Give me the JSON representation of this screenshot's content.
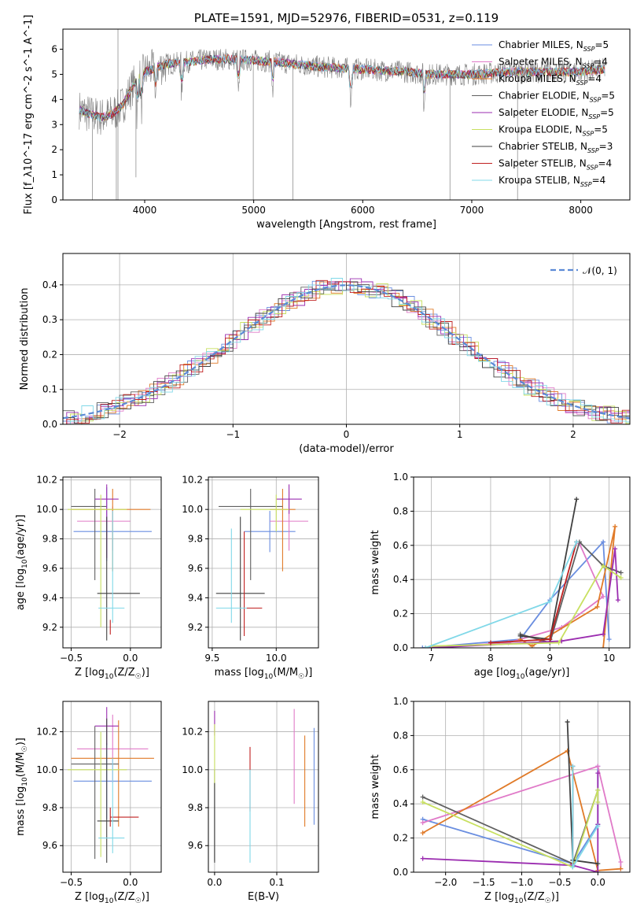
{
  "colors": [
    "#6a8ee0",
    "#e07ac8",
    "#e07a28",
    "#606060",
    "#9b2db0",
    "#c8e060",
    "#404040",
    "#c02020",
    "#80d8e8"
  ],
  "chart_data": [
    {
      "id": "spectrum",
      "type": "line",
      "title": "PLATE=1591, MJD=52976, FIBERID=0531, z=0.119",
      "xlabel": "wavelength [Angstrom, rest frame]",
      "ylabel": "Flux [f_λ10^-17 erg cm^-2 s^-1 A^-1]",
      "xlim": [
        3250,
        8450
      ],
      "ylim": [
        0,
        6.8
      ],
      "xticks": [
        4000,
        5000,
        6000,
        7000,
        8000
      ],
      "yticks": [
        0,
        1,
        2,
        3,
        4,
        5,
        6
      ],
      "grid": false,
      "legend_position": "top-right",
      "series": [
        {
          "name": "Chabrier MILES, N_SSP=5",
          "base": "Chabrier MILES, N",
          "sub": "SSP",
          "tail": "=5"
        },
        {
          "name": "Salpeter MILES, N_SSP=4",
          "base": "Salpeter MILES, N",
          "sub": "SSP",
          "tail": "=4"
        },
        {
          "name": "Kroupa MILES, N_SSP=4",
          "base": "Kroupa MILES, N",
          "sub": "SSP",
          "tail": "=4"
        },
        {
          "name": "Chabrier ELODIE, N_SSP=5",
          "base": "Chabrier ELODIE, N",
          "sub": "SSP",
          "tail": "=5"
        },
        {
          "name": "Salpeter ELODIE, N_SSP=5",
          "base": "Salpeter ELODIE, N",
          "sub": "SSP",
          "tail": "=5"
        },
        {
          "name": "Kroupa ELODIE, N_SSP=5",
          "base": "Kroupa ELODIE, N",
          "sub": "SSP",
          "tail": "=5"
        },
        {
          "name": "Chabrier STELIB, N_SSP=3",
          "base": "Chabrier STELIB, N",
          "sub": "SSP",
          "tail": "=3"
        },
        {
          "name": "Salpeter STELIB, N_SSP=4",
          "base": "Salpeter STELIB, N",
          "sub": "SSP",
          "tail": "=4"
        },
        {
          "name": "Kroupa STELIB, N_SSP=4",
          "base": "Kroupa STELIB, N",
          "sub": "SSP",
          "tail": "=4"
        }
      ],
      "continuum": {
        "x": [
          3400,
          3500,
          3600,
          3700,
          3800,
          3900,
          4000,
          4200,
          4400,
          4600,
          4800,
          5000,
          5200,
          5400,
          5600,
          5800,
          6000,
          6200,
          6400,
          6600,
          6800,
          7000,
          7200,
          7400,
          7600,
          7800,
          8000,
          8200
        ],
        "y": [
          3.6,
          3.4,
          3.3,
          3.4,
          3.8,
          4.6,
          5.1,
          5.4,
          5.5,
          5.6,
          5.6,
          5.55,
          5.5,
          5.4,
          5.3,
          5.25,
          5.2,
          5.15,
          5.1,
          5.0,
          5.0,
          5.0,
          5.05,
          5.1,
          5.1,
          5.1,
          5.1,
          5.2
        ]
      }
    },
    {
      "id": "residuals",
      "type": "line",
      "xlabel": "(data-model)/error",
      "ylabel": "Normed distribution",
      "xlim": [
        -2.5,
        2.5
      ],
      "ylim": [
        0,
        0.49
      ],
      "xticks": [
        -2,
        -1,
        0,
        1,
        2
      ],
      "yticks": [
        0.0,
        0.1,
        0.2,
        0.3,
        0.4
      ],
      "grid": true,
      "legend_position": "top-right",
      "legend_label": "𝒩(0, 1)",
      "gaussian": {
        "mu": 0,
        "sigma": 1
      }
    },
    {
      "id": "age-vs-z",
      "type": "scatter",
      "xlabel": "Z [log10(Z/Z☉)]",
      "xlabel_parts": [
        "Z [log",
        "10",
        "(Z/Z",
        "☉",
        ")]"
      ],
      "ylabel": "age [log10(age/yr)]",
      "ylabel_parts": [
        "age  [log",
        "10",
        "(age/yr)]"
      ],
      "xlim": [
        -0.57,
        0.26
      ],
      "ylim": [
        9.06,
        10.22
      ],
      "xticks": [
        -0.5,
        0.0
      ],
      "yticks": [
        9.2,
        9.4,
        9.6,
        9.8,
        10.0,
        10.2
      ],
      "grid": true,
      "errorbars": [
        {
          "series": 0,
          "x": -0.2,
          "y": 9.85,
          "xerr": [
            0.28,
            0.38
          ],
          "yerr": [
            0.2,
            0.3
          ]
        },
        {
          "series": 1,
          "x": -0.15,
          "y": 9.92,
          "xerr": [
            0.3,
            0.15
          ],
          "yerr": [
            0.2,
            0.1
          ]
        },
        {
          "series": 2,
          "x": -0.15,
          "y": 10.0,
          "xerr": [
            0.35,
            0.32
          ],
          "yerr": [
            0.42,
            0.14
          ]
        },
        {
          "series": 3,
          "x": -0.3,
          "y": 10.02,
          "xerr": [
            0.2,
            0.1
          ],
          "yerr": [
            0.5,
            0.12
          ]
        },
        {
          "series": 4,
          "x": -0.2,
          "y": 10.07,
          "xerr": [
            0.1,
            0.1
          ],
          "yerr": [
            0.4,
            0.1
          ]
        },
        {
          "series": 5,
          "x": -0.25,
          "y": 10.0,
          "xerr": [
            0.28,
            0.22
          ],
          "yerr": [
            0.8,
            0.1
          ]
        },
        {
          "series": 6,
          "x": -0.2,
          "y": 9.43,
          "xerr": [
            0.08,
            0.28
          ],
          "yerr": [
            0.32,
            0.52
          ]
        },
        {
          "series": 7,
          "x": -0.17,
          "y": 9.2,
          "xerr": [
            0.0,
            0.0
          ],
          "yerr": [
            0.05,
            0.05
          ]
        },
        {
          "series": 8,
          "x": -0.15,
          "y": 9.33,
          "xerr": [
            0.12,
            0.1
          ],
          "yerr": [
            0.1,
            0.66
          ]
        }
      ]
    },
    {
      "id": "age-vs-mass",
      "type": "scatter",
      "xlabel": "mass [log10(M/M☉)]",
      "xlabel_parts": [
        "mass [log",
        "10",
        "(M/M",
        "☉",
        ")]"
      ],
      "ylabel": "",
      "xlim": [
        9.47,
        10.33
      ],
      "ylim": [
        9.06,
        10.22
      ],
      "xticks": [
        9.5,
        10.0
      ],
      "yticks": [
        9.2,
        9.4,
        9.6,
        9.8,
        10.0,
        10.2
      ],
      "grid": true,
      "errorbars": [
        {
          "series": 0,
          "x": 9.95,
          "y": 9.85,
          "xerr": [
            0.2,
            0.2
          ],
          "yerr": [
            0.14,
            0.14
          ]
        },
        {
          "series": 1,
          "x": 10.1,
          "y": 9.92,
          "xerr": [
            0.15,
            0.15
          ],
          "yerr": [
            0.2,
            0.2
          ]
        },
        {
          "series": 2,
          "x": 10.05,
          "y": 10.0,
          "xerr": [
            0.1,
            0.1
          ],
          "yerr": [
            0.42,
            0.14
          ]
        },
        {
          "series": 3,
          "x": 9.8,
          "y": 10.02,
          "xerr": [
            0.25,
            0.25
          ],
          "yerr": [
            0.5,
            0.12
          ]
        },
        {
          "series": 4,
          "x": 10.1,
          "y": 10.07,
          "xerr": [
            0.1,
            0.1
          ],
          "yerr": [
            0.1,
            0.1
          ]
        },
        {
          "series": 5,
          "x": 10.0,
          "y": 10.0,
          "xerr": [
            0.28,
            0.1
          ],
          "yerr": [
            0.15,
            0.1
          ]
        },
        {
          "series": 6,
          "x": 9.72,
          "y": 9.43,
          "xerr": [
            0.19,
            0.19
          ],
          "yerr": [
            0.32,
            0.52
          ]
        },
        {
          "series": 7,
          "x": 9.75,
          "y": 9.33,
          "xerr": [
            0.0,
            0.14
          ],
          "yerr": [
            0.19,
            0.52
          ]
        },
        {
          "series": 8,
          "x": 9.65,
          "y": 9.33,
          "xerr": [
            0.12,
            0.12
          ],
          "yerr": [
            0.1,
            0.54
          ]
        }
      ]
    },
    {
      "id": "massweight-vs-age",
      "type": "line",
      "xlabel": "age  [log10(age/yr)]",
      "xlabel_parts": [
        "age  [log",
        "10",
        "(age/yr)]"
      ],
      "ylabel": "mass weight",
      "xlim": [
        6.7,
        10.35
      ],
      "ylim": [
        0,
        1.0
      ],
      "xticks": [
        7,
        8,
        9,
        10
      ],
      "yticks": [
        0.0,
        0.2,
        0.4,
        0.6,
        0.8,
        1.0
      ],
      "grid": true,
      "series": [
        {
          "series": 0,
          "x": [
            6.85,
            8.5,
            9.0,
            9.9,
            10.0
          ],
          "y": [
            0.0,
            0.05,
            0.28,
            0.62,
            0.05
          ]
        },
        {
          "series": 1,
          "x": [
            6.9,
            8.3,
            9.2,
            9.9,
            9.5
          ],
          "y": [
            0.0,
            0.03,
            0.12,
            0.3,
            0.61
          ]
        },
        {
          "series": 2,
          "x": [
            8.5,
            8.7,
            9.8,
            10.1,
            9.9
          ],
          "y": [
            0.05,
            0.01,
            0.24,
            0.71,
            0.0
          ]
        },
        {
          "series": 3,
          "x": [
            8.5,
            9.0,
            9.5,
            9.9,
            10.2
          ],
          "y": [
            0.08,
            0.03,
            0.62,
            0.48,
            0.44
          ]
        },
        {
          "series": 4,
          "x": [
            7.0,
            9.2,
            9.9,
            10.1,
            10.15
          ],
          "y": [
            0.0,
            0.04,
            0.08,
            0.58,
            0.28
          ]
        },
        {
          "series": 5,
          "x": [
            7.0,
            9.15,
            9.9,
            10.2
          ],
          "y": [
            0.01,
            0.03,
            0.48,
            0.41
          ]
        },
        {
          "series": 6,
          "x": [
            8.5,
            9.0,
            9.45
          ],
          "y": [
            0.07,
            0.05,
            0.87
          ]
        },
        {
          "series": 7,
          "x": [
            8.0,
            9.0,
            9.45
          ],
          "y": [
            0.03,
            0.05,
            0.62
          ]
        },
        {
          "series": 8,
          "x": [
            6.9,
            9.0,
            9.45
          ],
          "y": [
            0.0,
            0.27,
            0.62
          ]
        }
      ]
    },
    {
      "id": "mass-vs-z",
      "type": "scatter",
      "xlabel": "Z [log10(Z/Z☉)]",
      "xlabel_parts": [
        "Z [log",
        "10",
        "(Z/Z",
        "☉",
        ")]"
      ],
      "ylabel": "mass [log10(M/M☉)]",
      "ylabel_parts": [
        "mass [log",
        "10",
        "(M/M",
        "☉",
        ")]"
      ],
      "xlim": [
        -0.57,
        0.26
      ],
      "ylim": [
        9.46,
        10.36
      ],
      "xticks": [
        -0.5,
        0.0
      ],
      "yticks": [
        9.6,
        9.8,
        10.0,
        10.2
      ],
      "grid": true,
      "errorbars": [
        {
          "series": 0,
          "x": -0.2,
          "y": 9.94,
          "xerr": [
            0.28,
            0.38
          ],
          "yerr": [
            0.2,
            0.2
          ]
        },
        {
          "series": 1,
          "x": -0.15,
          "y": 10.11,
          "xerr": [
            0.3,
            0.3
          ],
          "yerr": [
            0.18,
            0.18
          ]
        },
        {
          "series": 2,
          "x": -0.1,
          "y": 10.06,
          "xerr": [
            0.4,
            0.3
          ],
          "yerr": [
            0.36,
            0.2
          ]
        },
        {
          "series": 3,
          "x": -0.3,
          "y": 10.03,
          "xerr": [
            0.2,
            0.2
          ],
          "yerr": [
            0.5,
            0.2
          ]
        },
        {
          "series": 4,
          "x": -0.2,
          "y": 10.23,
          "xerr": [
            0.1,
            0.1
          ],
          "yerr": [
            0.1,
            0.1
          ]
        },
        {
          "series": 5,
          "x": -0.25,
          "y": 10.0,
          "xerr": [
            0.28,
            0.22
          ],
          "yerr": [
            0.46,
            0.2
          ]
        },
        {
          "series": 6,
          "x": -0.2,
          "y": 9.73,
          "xerr": [
            0.08,
            0.1
          ],
          "yerr": [
            0.22,
            0.54
          ]
        },
        {
          "series": 7,
          "x": -0.17,
          "y": 9.75,
          "xerr": [
            0.0,
            0.24
          ],
          "yerr": [
            0.05,
            0.05
          ]
        },
        {
          "series": 8,
          "x": -0.15,
          "y": 9.64,
          "xerr": [
            0.12,
            0.1
          ],
          "yerr": [
            0.08,
            0.42
          ]
        }
      ]
    },
    {
      "id": "mass-vs-ebv",
      "type": "scatter",
      "xlabel": "E(B-V)",
      "ylabel": "",
      "xlim": [
        -0.01,
        0.167
      ],
      "ylim": [
        9.46,
        10.36
      ],
      "xticks": [
        0.0,
        0.1
      ],
      "yticks": [
        9.6,
        9.8,
        10.0,
        10.2
      ],
      "grid": true,
      "errorbars": [
        {
          "series": 0,
          "x": 0.16,
          "y": 9.96,
          "xerr": [
            0,
            0
          ],
          "yerr": [
            0.25,
            0.26
          ]
        },
        {
          "series": 1,
          "x": 0.128,
          "y": 10.07,
          "xerr": [
            0,
            0
          ],
          "yerr": [
            0.25,
            0.25
          ]
        },
        {
          "series": 2,
          "x": 0.145,
          "y": 9.94,
          "xerr": [
            0,
            0
          ],
          "yerr": [
            0.24,
            0.24
          ]
        },
        {
          "series": 3,
          "x": 0.0,
          "y": 9.8,
          "xerr": [
            0,
            0
          ],
          "yerr": [
            0.28,
            0.2
          ]
        },
        {
          "series": 4,
          "x": 0.0,
          "y": 10.23,
          "xerr": [
            0,
            0
          ],
          "yerr": [
            0.05,
            0.08
          ]
        },
        {
          "series": 5,
          "x": 0.0,
          "y": 10.0,
          "xerr": [
            0,
            0
          ],
          "yerr": [
            0.1,
            0.24
          ]
        },
        {
          "series": 6,
          "x": 0.0,
          "y": 9.73,
          "xerr": [
            0,
            0
          ],
          "yerr": [
            0.22,
            0.2
          ]
        },
        {
          "series": 7,
          "x": 0.057,
          "y": 9.95,
          "xerr": [
            0,
            0
          ],
          "yerr": [
            0.17,
            0.17
          ]
        },
        {
          "series": 8,
          "x": 0.057,
          "y": 9.78,
          "xerr": [
            0,
            0
          ],
          "yerr": [
            0.27,
            0.22
          ]
        }
      ]
    },
    {
      "id": "massweight-vs-z",
      "type": "line",
      "xlabel": "Z [log10(Z/Z☉)]",
      "xlabel_parts": [
        "Z [log",
        "10",
        "(Z/Z",
        "☉",
        ")]"
      ],
      "ylabel": "mass weight",
      "xlim": [
        -2.42,
        0.42
      ],
      "ylim": [
        0,
        1.0
      ],
      "xticks": [
        -2.0,
        -1.5,
        -1.0,
        -0.5,
        0.0
      ],
      "yticks": [
        0.0,
        0.2,
        0.4,
        0.6,
        0.8,
        1.0
      ],
      "grid": true,
      "series": [
        {
          "series": 0,
          "x": [
            -2.3,
            -0.33,
            0.0,
            0.0
          ],
          "y": [
            0.31,
            0.05,
            0.28,
            0.62
          ]
        },
        {
          "series": 1,
          "x": [
            -2.3,
            0.0,
            0.3,
            0.3
          ],
          "y": [
            0.29,
            0.62,
            0.06,
            0.02
          ]
        },
        {
          "series": 2,
          "x": [
            -2.3,
            -0.4,
            0.0,
            0.3
          ],
          "y": [
            0.23,
            0.71,
            0.01,
            0.02
          ]
        },
        {
          "series": 3,
          "x": [
            -2.3,
            -0.33,
            0.0
          ],
          "y": [
            0.44,
            0.05,
            0.48
          ]
        },
        {
          "series": 4,
          "x": [
            -2.3,
            -0.33,
            0.0,
            0.0,
            0.0
          ],
          "y": [
            0.08,
            0.04,
            0.0,
            0.58,
            0.28
          ]
        },
        {
          "series": 5,
          "x": [
            -2.3,
            -0.33,
            0.0,
            0.0
          ],
          "y": [
            0.41,
            0.03,
            0.48,
            0.41
          ]
        },
        {
          "series": 6,
          "x": [
            -0.4,
            -0.33,
            0.0
          ],
          "y": [
            0.88,
            0.07,
            0.05
          ]
        },
        {
          "series": 7,
          "x": [
            -0.33,
            -0.33
          ],
          "y": [
            0.62,
            0.05
          ]
        },
        {
          "series": 8,
          "x": [
            -0.33,
            -0.33,
            0.0
          ],
          "y": [
            0.62,
            0.03,
            0.27
          ]
        }
      ]
    }
  ]
}
